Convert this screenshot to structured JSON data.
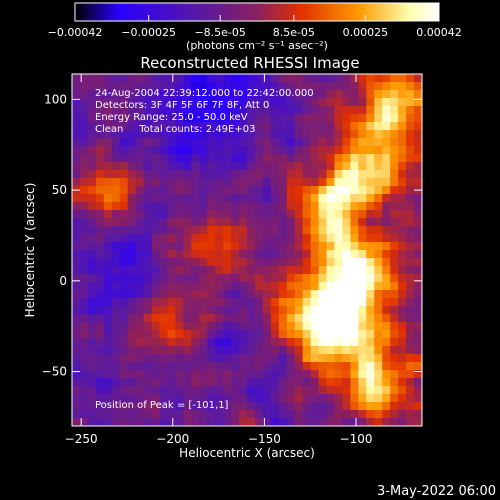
{
  "chart_data": {
    "type": "heatmap",
    "title": "Reconstructed RHESSI Image",
    "xlabel": "Heliocentric X (arcsec)",
    "ylabel": "Heliocentric Y (arcsec)",
    "xlim": [
      -255,
      -64
    ],
    "ylim": [
      -80,
      114
    ],
    "x_ticks": [
      -250,
      -200,
      -150,
      -100
    ],
    "y_ticks": [
      -50,
      0,
      50,
      100
    ],
    "colorbar": {
      "range": [
        -0.00042,
        0.00042
      ],
      "ticks": [
        "-0.00042",
        "-0.00025",
        "-8.5e-05",
        "8.5e-05",
        "0.00025",
        "0.00042"
      ],
      "unit_label": "(photons cm⁻² s⁻¹ asec⁻²)",
      "colormap": [
        "#000000",
        "#2a00ff",
        "#5a1aa0",
        "#8a2060",
        "#e03000",
        "#ff9a00",
        "#ffffb0",
        "#ffffff"
      ]
    },
    "annotations": [
      "24-Aug-2004 22:39:12.000 to 22:42:00.000",
      "Detectors: 3F 4F 5F 6F 7F 8F, Att 0",
      "Energy Range: 25.0 - 50.0 keV",
      "Clean     Total counts: 2.49E+03"
    ],
    "peak_label": "Position of Peak = [-101,1]",
    "peak": [
      -101,
      1
    ],
    "bright_regions": [
      {
        "x": -101,
        "y": 1,
        "intensity": 1.0
      },
      {
        "x": -110,
        "y": -30,
        "intensity": 0.75
      },
      {
        "x": -95,
        "y": 60,
        "intensity": 0.7
      },
      {
        "x": -115,
        "y": 35,
        "intensity": 0.7
      },
      {
        "x": -90,
        "y": -55,
        "intensity": 0.6
      },
      {
        "x": -130,
        "y": -15,
        "intensity": 0.55
      },
      {
        "x": -80,
        "y": 95,
        "intensity": 0.6
      },
      {
        "x": -235,
        "y": 50,
        "intensity": 0.45
      },
      {
        "x": -205,
        "y": -20,
        "intensity": 0.4
      },
      {
        "x": -180,
        "y": 20,
        "intensity": 0.35
      }
    ],
    "dark_regions": [
      {
        "x": -190,
        "y": 90,
        "depth": 0.6
      },
      {
        "x": -225,
        "y": 5,
        "depth": 0.4
      },
      {
        "x": -165,
        "y": 105,
        "depth": 0.4
      }
    ]
  },
  "timestamp": "3-May-2022 06:00"
}
